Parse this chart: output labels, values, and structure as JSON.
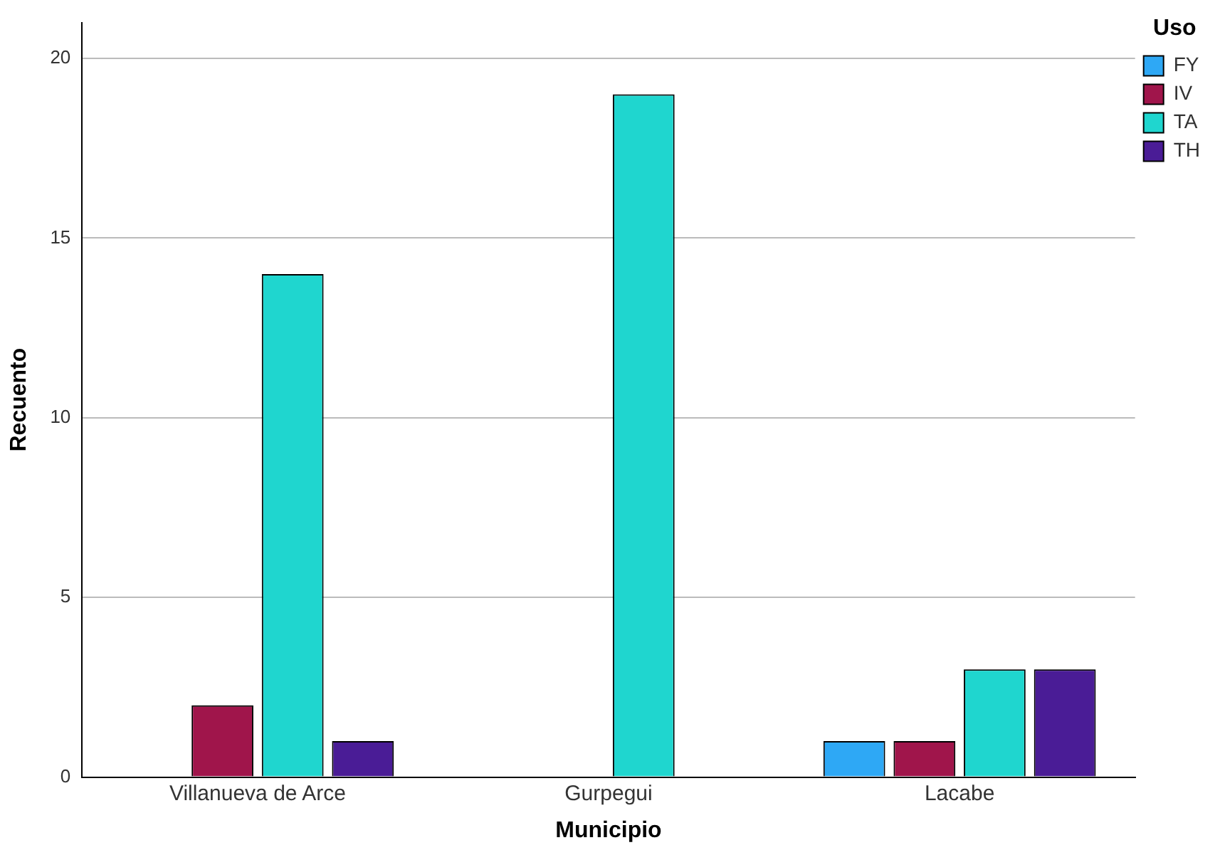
{
  "chart_data": {
    "type": "bar",
    "xlabel": "Municipio",
    "ylabel": "Recuento",
    "legend_title": "Uso",
    "categories": [
      "Villanueva de Arce",
      "Gurpegui",
      "Lacabe"
    ],
    "series": [
      {
        "name": "FY",
        "color": "#2ea8f5",
        "values": [
          null,
          null,
          1
        ]
      },
      {
        "name": "IV",
        "color": "#a0154b",
        "values": [
          2,
          null,
          1
        ]
      },
      {
        "name": "TA",
        "color": "#1fd6cf",
        "values": [
          14,
          19,
          3
        ]
      },
      {
        "name": "TH",
        "color": "#4a1c96",
        "values": [
          1,
          null,
          3
        ]
      }
    ],
    "ylim": [
      0,
      21
    ],
    "yticks": [
      0,
      5,
      10,
      15,
      20
    ],
    "grid": "y",
    "legend": "top right"
  }
}
